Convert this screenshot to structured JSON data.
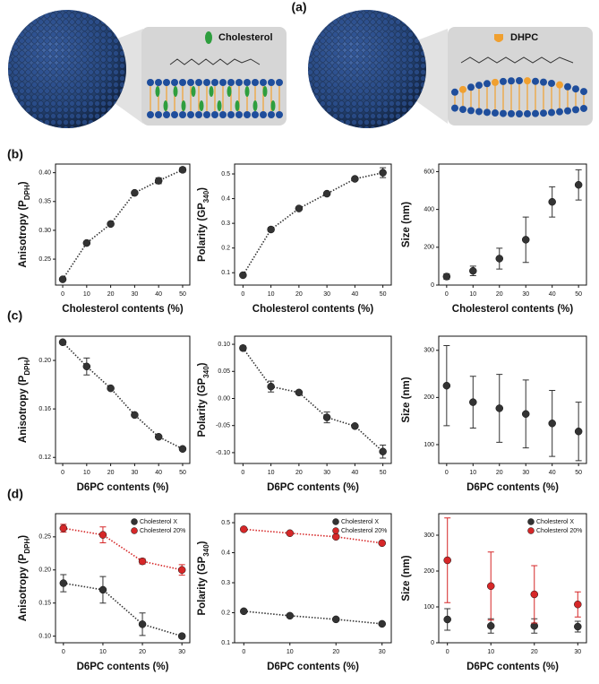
{
  "panels": [
    "(a)",
    "(b)",
    "(c)",
    "(d)"
  ],
  "illustration": {
    "labels": [
      "Cholesterol",
      "DHPC"
    ]
  },
  "chart_data": [
    {
      "type": "line",
      "xlabel": "Cholesterol contents (%)",
      "ylabel": [
        "Anisotropy (P",
        "DPH",
        ")"
      ],
      "x": [
        0,
        10,
        20,
        30,
        40,
        50
      ],
      "values": [
        0.215,
        0.278,
        0.311,
        0.365,
        0.386,
        0.405
      ],
      "errors": [
        0.002,
        0.003,
        0.003,
        0.003,
        0.005,
        0.004
      ],
      "color": "#333333",
      "xlim": [
        -3,
        53
      ],
      "xticks": [
        0,
        10,
        20,
        30,
        40,
        50
      ],
      "ylim": [
        0.205,
        0.415
      ],
      "yticks": [
        0.25,
        {
          "value": 0.3,
          "label": "0.30"
        },
        0.35,
        {
          "value": 0.4,
          "label": "0.40"
        }
      ]
    },
    {
      "type": "line",
      "xlabel": "Cholesterol contents (%)",
      "ylabel": [
        "Polarity (GP",
        "340",
        ")"
      ],
      "x": [
        0,
        10,
        20,
        30,
        40,
        50
      ],
      "values": [
        0.09,
        0.275,
        0.36,
        0.42,
        0.48,
        0.505
      ],
      "errors": [
        0.005,
        0.008,
        0.006,
        0.006,
        0.006,
        0.02
      ],
      "color": "#333333",
      "xlim": [
        -3,
        53
      ],
      "xticks": [
        0,
        10,
        20,
        30,
        40,
        50
      ],
      "ylim": [
        0.05,
        0.54
      ],
      "yticks": [
        0.1,
        0.2,
        0.3,
        0.4,
        0.5
      ]
    },
    {
      "type": "scatter",
      "xlabel": "Cholesterol contents (%)",
      "ylabel": [
        "Size (nm)"
      ],
      "x": [
        0,
        10,
        20,
        30,
        40,
        50
      ],
      "values": [
        45,
        75,
        140,
        240,
        440,
        530
      ],
      "errors": [
        15,
        25,
        55,
        120,
        80,
        80
      ],
      "color": "#333333",
      "xlim": [
        -3,
        53
      ],
      "xticks": [
        0,
        10,
        20,
        30,
        40,
        50
      ],
      "ylim": [
        0,
        640
      ],
      "yticks": [
        0,
        200,
        400,
        600
      ]
    },
    {
      "type": "line",
      "xlabel": "D6PC contents (%)",
      "ylabel": [
        "Anisotropy (P",
        "DPH",
        ")"
      ],
      "x": [
        0,
        10,
        20,
        30,
        40,
        50
      ],
      "values": [
        0.215,
        0.195,
        0.177,
        0.155,
        0.137,
        0.127
      ],
      "errors": [
        0.001,
        0.007,
        0.001,
        0.001,
        0.001,
        0.001
      ],
      "color": "#333333",
      "xlim": [
        -3,
        53
      ],
      "xticks": [
        0,
        10,
        20,
        30,
        40,
        50
      ],
      "ylim": [
        0.115,
        0.22
      ],
      "yticks": [
        0.12,
        0.16,
        {
          "value": 0.2,
          "label": "0.20"
        }
      ]
    },
    {
      "type": "line",
      "xlabel": "D6PC contents (%)",
      "ylabel": [
        "Polarity (GP",
        "340",
        ")"
      ],
      "x": [
        0,
        10,
        20,
        30,
        40,
        50
      ],
      "values": [
        0.093,
        0.022,
        0.011,
        -0.035,
        -0.051,
        -0.098
      ],
      "errors": [
        0.004,
        0.01,
        0.003,
        0.01,
        0.003,
        0.012
      ],
      "color": "#333333",
      "xlim": [
        -3,
        53
      ],
      "xticks": [
        0,
        10,
        20,
        30,
        40,
        50
      ],
      "ylim": [
        -0.12,
        0.115
      ],
      "yticks": [
        {
          "value": -0.1,
          "label": "-0.10"
        },
        -0.05,
        {
          "value": 0,
          "label": "0.00"
        },
        0.05,
        {
          "value": 0.1,
          "label": "0.10"
        }
      ]
    },
    {
      "type": "scatter",
      "xlabel": "D6PC contents (%)",
      "ylabel": [
        "Size (nm)"
      ],
      "x": [
        0,
        10,
        20,
        30,
        40,
        50
      ],
      "values": [
        225,
        190,
        177,
        165,
        145,
        128
      ],
      "errors": [
        85,
        55,
        72,
        72,
        70,
        62
      ],
      "color": "#333333",
      "xlim": [
        -3,
        53
      ],
      "xticks": [
        0,
        10,
        20,
        30,
        40,
        50
      ],
      "ylim": [
        60,
        330
      ],
      "yticks": [
        100,
        200,
        300
      ]
    },
    {
      "type": "line",
      "xlabel": "D6PC contents (%)",
      "ylabel": [
        "Anisotropy (P",
        "DPH",
        ")"
      ],
      "x": [
        0,
        10,
        20,
        30
      ],
      "series": [
        {
          "name": "Cholesterol X",
          "color": "#333333",
          "values": [
            0.18,
            0.17,
            0.118,
            0.1
          ],
          "errors": [
            0.013,
            0.02,
            0.017,
            0.003
          ]
        },
        {
          "name": "Cholesterol 20%",
          "color": "#d62728",
          "values": [
            0.263,
            0.253,
            0.213,
            0.2
          ],
          "errors": [
            0.006,
            0.012,
            0.004,
            0.008
          ]
        }
      ],
      "legend": "upper right",
      "xlim": [
        -2,
        32
      ],
      "xticks": [
        0,
        10,
        20,
        30
      ],
      "ylim": [
        0.09,
        0.285
      ],
      "yticks": [
        {
          "value": 0.1,
          "label": "0.10"
        },
        0.15,
        {
          "value": 0.2,
          "label": "0.20"
        },
        0.25
      ]
    },
    {
      "type": "line",
      "xlabel": "D6PC contents (%)",
      "ylabel": [
        "Polarity (GP",
        "340",
        ")"
      ],
      "x": [
        0,
        10,
        20,
        30
      ],
      "series": [
        {
          "name": "Cholesterol X",
          "color": "#333333",
          "values": [
            0.205,
            0.19,
            0.178,
            0.163
          ],
          "errors": [
            0.006,
            0.006,
            0.005,
            0.005
          ]
        },
        {
          "name": "Cholesterol 20%",
          "color": "#d62728",
          "values": [
            0.478,
            0.465,
            0.453,
            0.432
          ],
          "errors": [
            0.006,
            0.005,
            0.005,
            0.005
          ]
        }
      ],
      "legend": "upper right",
      "xlim": [
        -2,
        32
      ],
      "xticks": [
        0,
        10,
        20,
        30
      ],
      "ylim": [
        0.1,
        0.53
      ],
      "yticks": [
        0.1,
        0.2,
        0.3,
        0.4,
        0.5
      ]
    },
    {
      "type": "scatter",
      "xlabel": "D6PC contents (%)",
      "ylabel": [
        "Size (nm)"
      ],
      "x": [
        0,
        10,
        20,
        30
      ],
      "series": [
        {
          "name": "Cholesterol X",
          "color": "#333333",
          "values": [
            65,
            47,
            47,
            45
          ],
          "errors": [
            30,
            20,
            20,
            15
          ]
        },
        {
          "name": "Cholesterol 20%",
          "color": "#d62728",
          "values": [
            230,
            158,
            135,
            107
          ],
          "errors": [
            118,
            95,
            80,
            35
          ]
        }
      ],
      "legend": "upper right",
      "xlim": [
        -2,
        32
      ],
      "xticks": [
        0,
        10,
        20,
        30
      ],
      "ylim": [
        0,
        360
      ],
      "yticks": [
        0,
        100,
        200,
        300
      ]
    }
  ]
}
